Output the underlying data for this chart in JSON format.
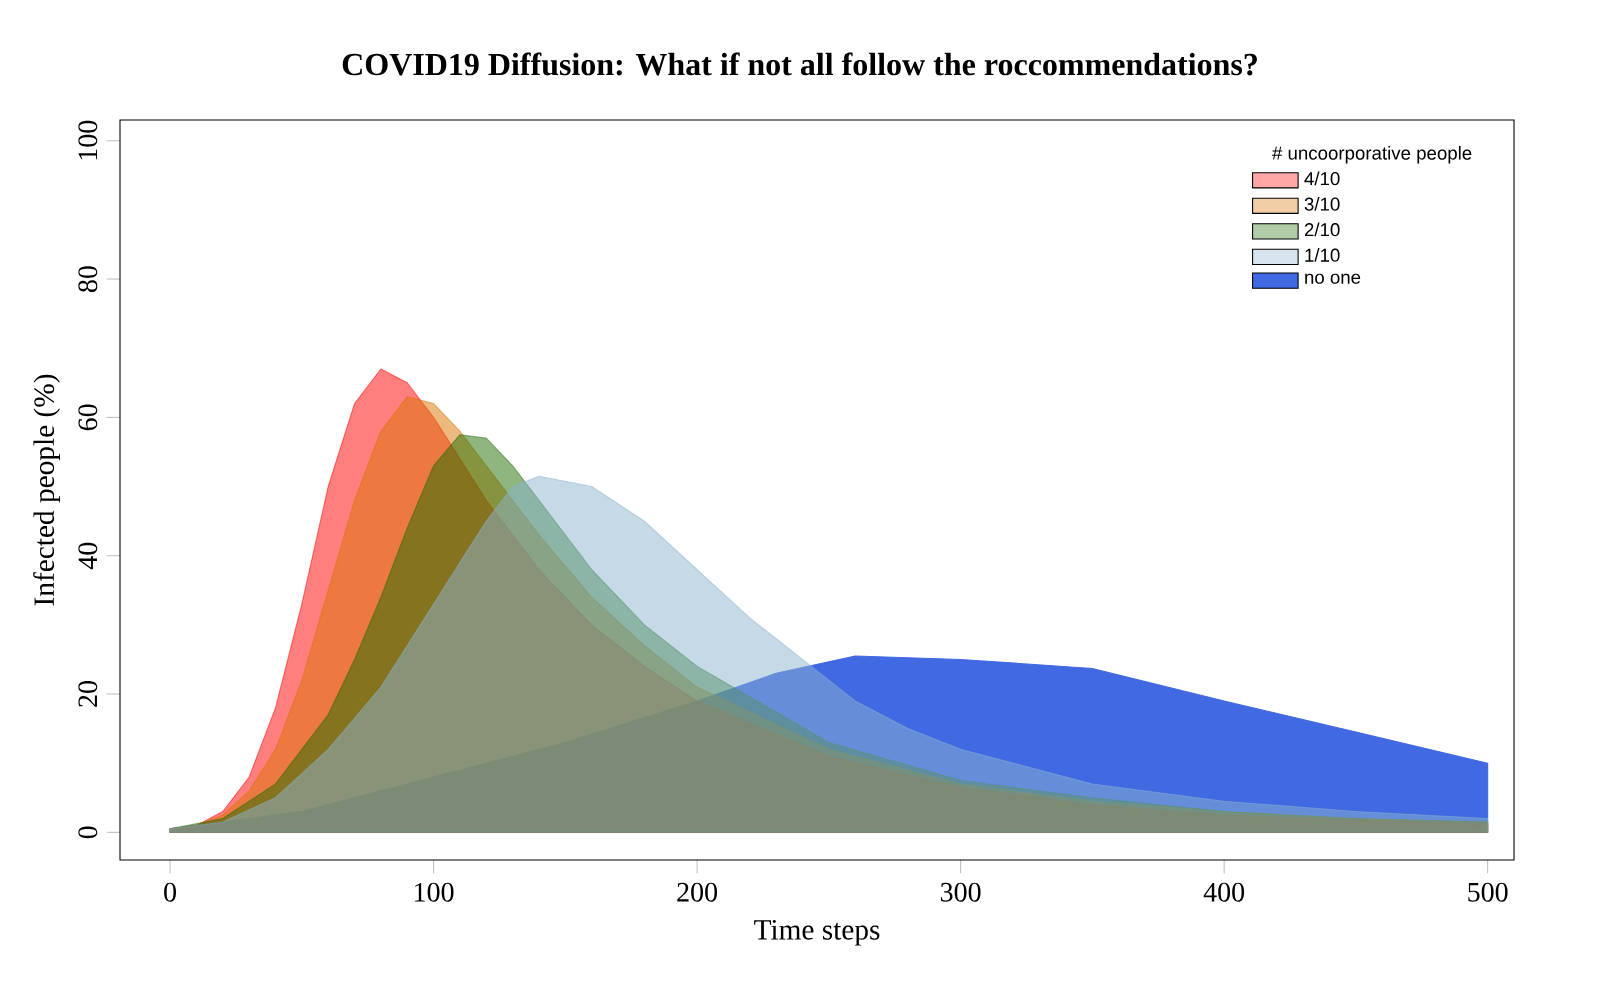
{
  "chart_data": {
    "type": "area",
    "title": "COVID19 Diffusion: What if not all follow the roccommendations?",
    "xlabel": "Time steps",
    "ylabel": "Infected people (%)",
    "legend_title": "# uncoorporative people",
    "legend": "top right",
    "xlim": [
      -19,
      510
    ],
    "ylim": [
      -4,
      103
    ],
    "xticks": [
      0,
      100,
      200,
      300,
      400,
      500
    ],
    "yticks": [
      0,
      20,
      40,
      60,
      80,
      100
    ],
    "series": [
      {
        "name": "4/10",
        "color": "#ff0000",
        "x": [
          0,
          10,
          20,
          30,
          40,
          50,
          60,
          70,
          80,
          90,
          100,
          110,
          120,
          140,
          160,
          180,
          200,
          250,
          300,
          350,
          400,
          450,
          500
        ],
        "values": [
          0.5,
          1,
          3,
          8,
          18,
          33,
          50,
          62,
          67,
          65,
          60,
          54,
          48,
          38,
          30,
          24,
          19,
          11,
          6.5,
          4,
          2.5,
          1.8,
          1.2
        ]
      },
      {
        "name": "3/10",
        "color": "#d97400",
        "x": [
          0,
          10,
          20,
          30,
          40,
          50,
          60,
          70,
          80,
          90,
          100,
          110,
          120,
          140,
          160,
          180,
          200,
          250,
          300,
          350,
          400,
          450,
          500
        ],
        "values": [
          0.5,
          1,
          2.5,
          6,
          12,
          22,
          35,
          48,
          58,
          63,
          62,
          58,
          53,
          43,
          34,
          27,
          21,
          12,
          7,
          4.5,
          3,
          2,
          1.5
        ]
      },
      {
        "name": "2/10",
        "color": "#1f6e00",
        "x": [
          0,
          20,
          40,
          60,
          70,
          80,
          90,
          100,
          110,
          120,
          130,
          140,
          160,
          180,
          200,
          250,
          300,
          350,
          400,
          450,
          500
        ],
        "values": [
          0.5,
          2,
          7,
          17,
          25,
          34,
          44,
          53,
          57.5,
          57,
          53,
          48,
          38,
          30,
          24,
          13,
          7.5,
          5,
          3,
          2,
          1.5
        ]
      },
      {
        "name": "1/10",
        "color": "#8cb3cf",
        "x": [
          0,
          20,
          40,
          60,
          80,
          100,
          120,
          130,
          140,
          160,
          180,
          200,
          220,
          240,
          260,
          280,
          300,
          350,
          400,
          450,
          500
        ],
        "values": [
          0.5,
          1.5,
          5,
          12,
          21,
          33,
          45,
          50,
          51.5,
          50,
          45,
          38,
          31,
          25,
          19,
          15,
          12,
          7,
          4.5,
          3,
          2
        ]
      },
      {
        "name": "no one",
        "color": "#4169e1",
        "x": [
          0,
          50,
          100,
          150,
          200,
          230,
          260,
          300,
          350,
          400,
          450,
          500
        ],
        "values": [
          0.5,
          3,
          8,
          13,
          19,
          23,
          25.5,
          25,
          23.7,
          19,
          14.5,
          10
        ]
      }
    ]
  }
}
